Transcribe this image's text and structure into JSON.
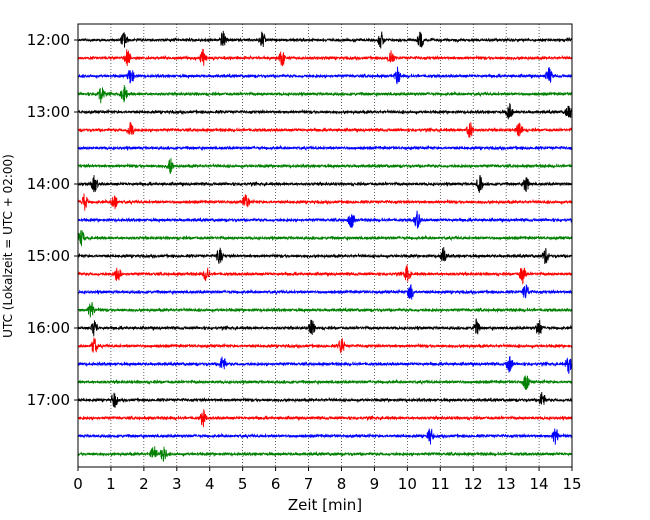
{
  "chart_data": {
    "type": "line",
    "title": "",
    "xlabel": "Zeit  [min]",
    "ylabel": "UTC (Lokalzeit = UTC + 02:00)",
    "xlim": [
      0,
      15
    ],
    "x_ticks": [
      "0",
      "1",
      "2",
      "3",
      "4",
      "5",
      "6",
      "7",
      "8",
      "9",
      "10",
      "11",
      "12",
      "13",
      "14",
      "15"
    ],
    "y_ticks": [
      "12:00",
      "13:00",
      "14:00",
      "15:00",
      "16:00",
      "17:00"
    ],
    "grid": "vertical dotted",
    "trace_colors": [
      "#000000",
      "#ff0000",
      "#0000ff",
      "#008000"
    ],
    "traces": [
      {
        "start": "12:00",
        "color": "#000000",
        "events": [
          1.4,
          4.4,
          5.6,
          9.2,
          10.4
        ]
      },
      {
        "start": "12:15",
        "color": "#ff0000",
        "events": [
          1.5,
          3.8,
          6.2,
          9.5
        ]
      },
      {
        "start": "12:30",
        "color": "#0000ff",
        "events": [
          1.6,
          9.7,
          14.3
        ]
      },
      {
        "start": "12:45",
        "color": "#008000",
        "events": [
          0.7,
          1.4
        ]
      },
      {
        "start": "13:00",
        "color": "#000000",
        "events": [
          13.1,
          14.9
        ]
      },
      {
        "start": "13:15",
        "color": "#ff0000",
        "events": [
          1.6,
          11.9,
          13.4
        ]
      },
      {
        "start": "13:30",
        "color": "#0000ff",
        "events": []
      },
      {
        "start": "13:45",
        "color": "#008000",
        "events": [
          2.8
        ]
      },
      {
        "start": "14:00",
        "color": "#000000",
        "events": [
          0.5,
          12.2,
          13.6
        ]
      },
      {
        "start": "14:15",
        "color": "#ff0000",
        "events": [
          0.2,
          1.1,
          5.1
        ]
      },
      {
        "start": "14:30",
        "color": "#0000ff",
        "events": [
          8.3,
          10.3
        ]
      },
      {
        "start": "14:45",
        "color": "#008000",
        "events": [
          0.1
        ]
      },
      {
        "start": "15:00",
        "color": "#000000",
        "events": [
          4.3,
          11.1,
          14.2
        ]
      },
      {
        "start": "15:15",
        "color": "#ff0000",
        "events": [
          1.2,
          3.9,
          10.0,
          13.5
        ]
      },
      {
        "start": "15:30",
        "color": "#0000ff",
        "events": [
          10.1,
          13.6
        ]
      },
      {
        "start": "15:45",
        "color": "#008000",
        "events": [
          0.4
        ]
      },
      {
        "start": "16:00",
        "color": "#000000",
        "events": [
          0.5,
          7.1,
          12.1,
          14.0
        ]
      },
      {
        "start": "16:15",
        "color": "#ff0000",
        "events": [
          0.5,
          8.0
        ]
      },
      {
        "start": "16:30",
        "color": "#0000ff",
        "events": [
          4.4,
          13.1,
          14.9
        ]
      },
      {
        "start": "16:45",
        "color": "#008000",
        "events": [
          13.6
        ]
      },
      {
        "start": "17:00",
        "color": "#000000",
        "events": [
          1.1,
          14.1
        ]
      },
      {
        "start": "17:15",
        "color": "#ff0000",
        "events": [
          3.8
        ]
      },
      {
        "start": "17:30",
        "color": "#0000ff",
        "events": [
          10.7,
          14.5
        ]
      },
      {
        "start": "17:45",
        "color": "#008000",
        "events": [
          2.3,
          2.6
        ]
      }
    ]
  }
}
